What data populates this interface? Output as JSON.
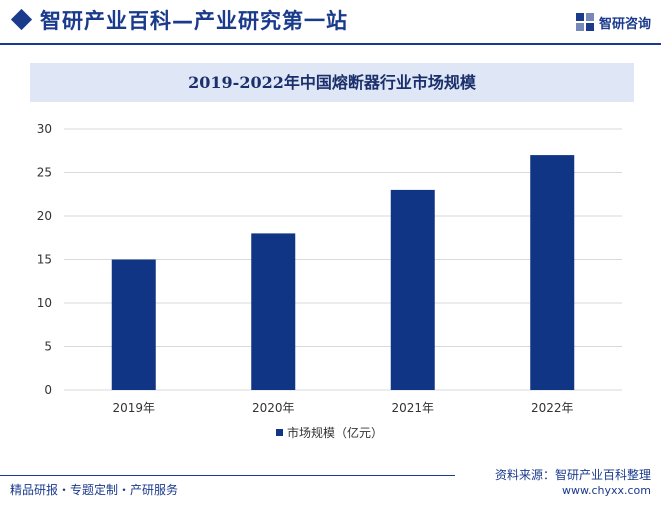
{
  "header": {
    "title": "智研产业百科—产业研究第一站",
    "logo_text": "智研咨询"
  },
  "colors": {
    "brand": "#1a3a8c",
    "bar": "#0f3584",
    "title_band": "#dfe7f6",
    "grid": "#d9d9d9"
  },
  "chart_data": {
    "type": "bar",
    "title": "2019-2022年中国熔断器行业市场规模",
    "categories": [
      "2019年",
      "2020年",
      "2021年",
      "2022年"
    ],
    "series": [
      {
        "name": "市场规模（亿元）",
        "values": [
          15,
          18,
          23,
          27
        ]
      }
    ],
    "ylim": [
      0,
      30
    ],
    "yticks": [
      0,
      5,
      10,
      15,
      20,
      25,
      30
    ],
    "grid": true,
    "legend_position": "bottom"
  },
  "footer": {
    "left": "精品研报・专题定制・产研服务",
    "source": "资料来源：智研产业百科整理",
    "url": "www.chyxx.com"
  }
}
